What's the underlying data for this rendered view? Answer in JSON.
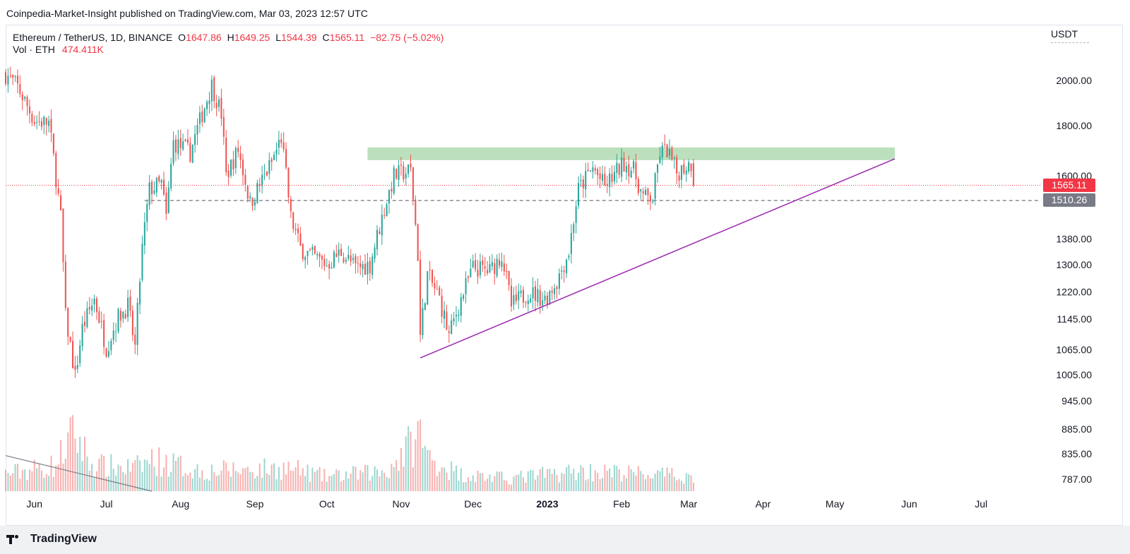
{
  "header": {
    "published": "Coinpedia-Market-Insight published on TradingView.com, Mar 03, 2023 12:57 UTC"
  },
  "legend": {
    "symbol": "Ethereum / TetherUS, 1D, BINANCE",
    "open_label": "O",
    "open": "1647.86",
    "high_label": "H",
    "high": "1649.25",
    "low_label": "L",
    "low": "1544.39",
    "close_label": "C",
    "close": "1565.11",
    "change": "−82.75 (−5.02%)",
    "vol_label": "Vol · ETH",
    "vol_value": "474.411K"
  },
  "axis": {
    "currency": "USDT",
    "current_price_tag": "1565.11",
    "ref_price_tag": "1510.26"
  },
  "footer": {
    "brand": "TradingView"
  },
  "colors": {
    "up": "#26a69a",
    "down": "#ef5350",
    "resistance_zone": "#a5d6a7",
    "trendline": "#9c27b0",
    "price_tag": "#f23645",
    "ref_tag": "#787b86"
  },
  "chart_data": {
    "type": "candlestick",
    "symbol": "Ethereum / TetherUS",
    "interval": "1D",
    "y_scale": "log",
    "ylim": [
      760,
      2260
    ],
    "y_ticks": [
      2000,
      1800,
      1600,
      1380,
      1300,
      1220,
      1145,
      1065,
      1005,
      945,
      885,
      835,
      787
    ],
    "y_tick_labels": [
      "2000.00",
      "1800.00",
      "1600.00",
      "1380.00",
      "1300.00",
      "1220.00",
      "1145.00",
      "1065.00",
      "1005.00",
      "945.00",
      "885.00",
      "835.00",
      "787.00"
    ],
    "x_range": [
      "2022-05-20",
      "2023-07-26"
    ],
    "x_ticks": [
      {
        "date": "2022-06-01",
        "label": "Jun"
      },
      {
        "date": "2022-07-01",
        "label": "Jul"
      },
      {
        "date": "2022-08-01",
        "label": "Aug"
      },
      {
        "date": "2022-09-01",
        "label": "Sep"
      },
      {
        "date": "2022-10-01",
        "label": "Oct"
      },
      {
        "date": "2022-11-01",
        "label": "Nov"
      },
      {
        "date": "2022-12-01",
        "label": "Dec"
      },
      {
        "date": "2023-01-01",
        "label": "2023"
      },
      {
        "date": "2023-02-01",
        "label": "Feb"
      },
      {
        "date": "2023-03-01",
        "label": "Mar"
      },
      {
        "date": "2023-04-01",
        "label": "Apr"
      },
      {
        "date": "2023-05-01",
        "label": "May"
      },
      {
        "date": "2023-06-01",
        "label": "Jun"
      },
      {
        "date": "2023-07-01",
        "label": "Jul"
      }
    ],
    "close_path": [
      [
        "2022-05-20",
        2030
      ],
      [
        "2022-05-25",
        1970
      ],
      [
        "2022-06-01",
        1820
      ],
      [
        "2022-06-07",
        1810
      ],
      [
        "2022-06-12",
        1450
      ],
      [
        "2022-06-14",
        1150
      ],
      [
        "2022-06-18",
        1000
      ],
      [
        "2022-06-21",
        1120
      ],
      [
        "2022-06-26",
        1200
      ],
      [
        "2022-07-01",
        1070
      ],
      [
        "2022-07-06",
        1150
      ],
      [
        "2022-07-10",
        1180
      ],
      [
        "2022-07-13",
        1070
      ],
      [
        "2022-07-16",
        1350
      ],
      [
        "2022-07-19",
        1550
      ],
      [
        "2022-07-24",
        1570
      ],
      [
        "2022-07-26",
        1450
      ],
      [
        "2022-07-29",
        1730
      ],
      [
        "2022-08-05",
        1690
      ],
      [
        "2022-08-10",
        1850
      ],
      [
        "2022-08-14",
        1980
      ],
      [
        "2022-08-18",
        1850
      ],
      [
        "2022-08-20",
        1600
      ],
      [
        "2022-08-25",
        1700
      ],
      [
        "2022-08-30",
        1500
      ],
      [
        "2022-09-05",
        1600
      ],
      [
        "2022-09-08",
        1650
      ],
      [
        "2022-09-12",
        1750
      ],
      [
        "2022-09-14",
        1600
      ],
      [
        "2022-09-16",
        1450
      ],
      [
        "2022-09-20",
        1350
      ],
      [
        "2022-09-24",
        1330
      ],
      [
        "2022-10-01",
        1300
      ],
      [
        "2022-10-07",
        1340
      ],
      [
        "2022-10-13",
        1290
      ],
      [
        "2022-10-19",
        1300
      ],
      [
        "2022-10-25",
        1480
      ],
      [
        "2022-10-29",
        1600
      ],
      [
        "2022-11-05",
        1620
      ],
      [
        "2022-11-08",
        1330
      ],
      [
        "2022-11-09",
        1100
      ],
      [
        "2022-11-12",
        1270
      ],
      [
        "2022-11-17",
        1200
      ],
      [
        "2022-11-21",
        1100
      ],
      [
        "2022-11-26",
        1200
      ],
      [
        "2022-12-01",
        1290
      ],
      [
        "2022-12-08",
        1280
      ],
      [
        "2022-12-13",
        1330
      ],
      [
        "2022-12-17",
        1180
      ],
      [
        "2022-12-24",
        1220
      ],
      [
        "2022-12-31",
        1200
      ],
      [
        "2023-01-05",
        1250
      ],
      [
        "2023-01-10",
        1340
      ],
      [
        "2023-01-14",
        1550
      ],
      [
        "2023-01-20",
        1630
      ],
      [
        "2023-01-25",
        1560
      ],
      [
        "2023-02-02",
        1650
      ],
      [
        "2023-02-06",
        1620
      ],
      [
        "2023-02-10",
        1520
      ],
      [
        "2023-02-14",
        1520
      ],
      [
        "2023-02-17",
        1690
      ],
      [
        "2023-02-20",
        1700
      ],
      [
        "2023-02-24",
        1610
      ],
      [
        "2023-02-28",
        1640
      ],
      [
        "2023-03-02",
        1647.86
      ],
      [
        "2023-03-03",
        1565.11
      ]
    ],
    "volume_path": [
      [
        "2022-05-20",
        0.3
      ],
      [
        "2022-06-10",
        0.45
      ],
      [
        "2022-06-14",
        0.8
      ],
      [
        "2022-06-18",
        1.0
      ],
      [
        "2022-06-25",
        0.45
      ],
      [
        "2022-07-13",
        0.4
      ],
      [
        "2022-07-20",
        0.55
      ],
      [
        "2022-08-10",
        0.35
      ],
      [
        "2022-09-15",
        0.4
      ],
      [
        "2022-10-01",
        0.25
      ],
      [
        "2022-10-26",
        0.35
      ],
      [
        "2022-11-09",
        1.0
      ],
      [
        "2022-11-12",
        0.6
      ],
      [
        "2022-11-25",
        0.3
      ],
      [
        "2022-12-15",
        0.22
      ],
      [
        "2023-01-14",
        0.35
      ],
      [
        "2023-02-10",
        0.3
      ],
      [
        "2023-03-03",
        0.25
      ]
    ],
    "last_price": 1565.11,
    "reference_level": 1510.26,
    "annotations": {
      "resistance_zone": {
        "from": "2022-10-18",
        "to": "2023-05-26",
        "low": 1660,
        "high": 1710
      },
      "ascending_trendline": {
        "start": [
          "2022-11-09",
          1045
        ],
        "end": [
          "2023-05-26",
          1665
        ]
      },
      "volume_trendline": {
        "start": [
          "2022-05-20",
          0.45
        ],
        "end": [
          "2022-07-20",
          0.0
        ]
      },
      "reference_line_start": "2022-07-17"
    }
  }
}
